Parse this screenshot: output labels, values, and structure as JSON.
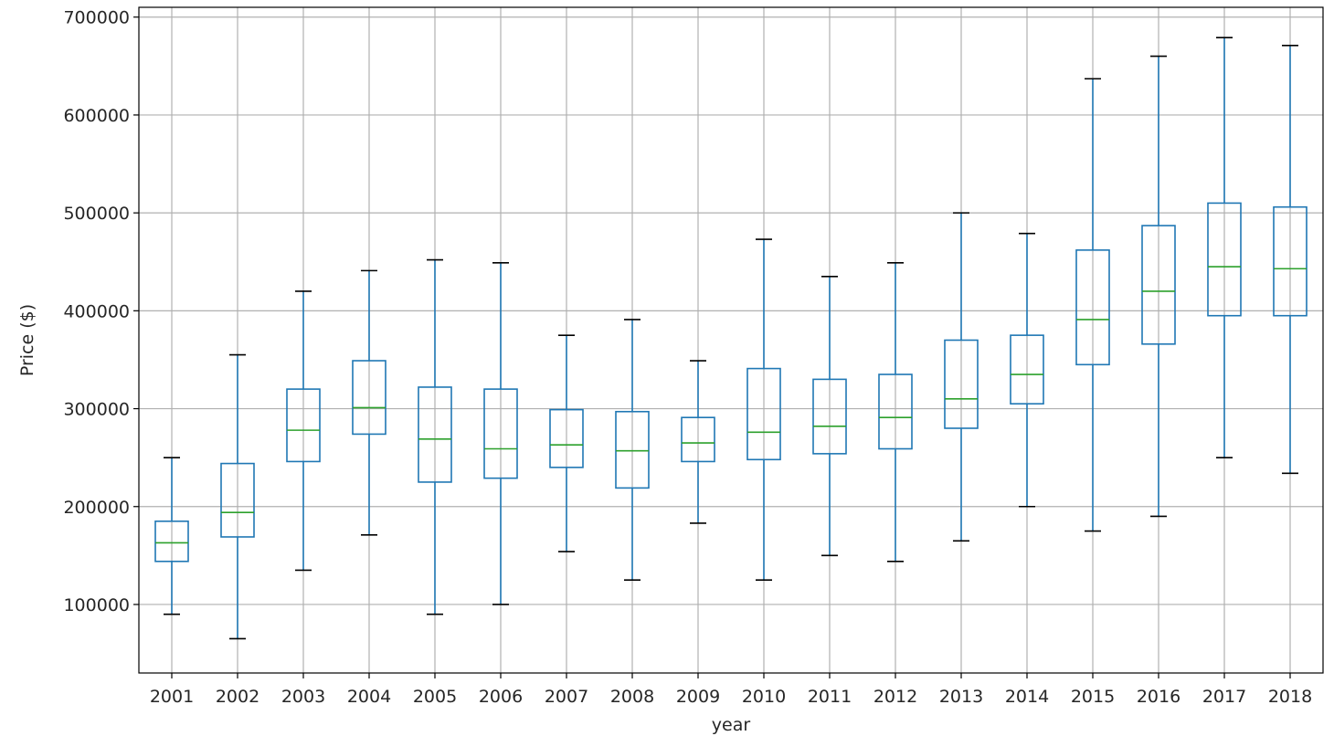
{
  "chart_data": {
    "type": "box",
    "title": "",
    "xlabel": "year",
    "ylabel": "Price ($)",
    "ylim": [
      30000,
      710000
    ],
    "yticks": [
      100000,
      200000,
      300000,
      400000,
      500000,
      600000,
      700000
    ],
    "ytick_labels": [
      "100000",
      "200000",
      "300000",
      "400000",
      "500000",
      "600000",
      "700000"
    ],
    "grid": true,
    "legend": "none",
    "colors": {
      "box": "#1f77b4",
      "median": "#2ca02c",
      "cap": "#000000",
      "grid": "#b0b0b0",
      "frame": "#000000"
    },
    "categories": [
      "2001",
      "2002",
      "2003",
      "2004",
      "2005",
      "2006",
      "2007",
      "2008",
      "2009",
      "2010",
      "2011",
      "2012",
      "2013",
      "2014",
      "2015",
      "2016",
      "2017",
      "2018"
    ],
    "boxes": [
      {
        "year": "2001",
        "whisker_low": 90000,
        "q1": 144000,
        "median": 163000,
        "q3": 185000,
        "whisker_high": 250000
      },
      {
        "year": "2002",
        "whisker_low": 65000,
        "q1": 169000,
        "median": 194000,
        "q3": 244000,
        "whisker_high": 355000
      },
      {
        "year": "2003",
        "whisker_low": 135000,
        "q1": 246000,
        "median": 278000,
        "q3": 320000,
        "whisker_high": 420000
      },
      {
        "year": "2004",
        "whisker_low": 171000,
        "q1": 274000,
        "median": 301000,
        "q3": 349000,
        "whisker_high": 441000
      },
      {
        "year": "2005",
        "whisker_low": 90000,
        "q1": 225000,
        "median": 269000,
        "q3": 322000,
        "whisker_high": 452000
      },
      {
        "year": "2006",
        "whisker_low": 100000,
        "q1": 229000,
        "median": 259000,
        "q3": 320000,
        "whisker_high": 449000
      },
      {
        "year": "2007",
        "whisker_low": 154000,
        "q1": 240000,
        "median": 263000,
        "q3": 299000,
        "whisker_high": 375000
      },
      {
        "year": "2008",
        "whisker_low": 125000,
        "q1": 219000,
        "median": 257000,
        "q3": 297000,
        "whisker_high": 391000
      },
      {
        "year": "2009",
        "whisker_low": 183000,
        "q1": 246000,
        "median": 265000,
        "q3": 291000,
        "whisker_high": 349000
      },
      {
        "year": "2010",
        "whisker_low": 125000,
        "q1": 248000,
        "median": 276000,
        "q3": 341000,
        "whisker_high": 473000
      },
      {
        "year": "2011",
        "whisker_low": 150000,
        "q1": 254000,
        "median": 282000,
        "q3": 330000,
        "whisker_high": 435000
      },
      {
        "year": "2012",
        "whisker_low": 144000,
        "q1": 259000,
        "median": 291000,
        "q3": 335000,
        "whisker_high": 449000
      },
      {
        "year": "2013",
        "whisker_low": 165000,
        "q1": 280000,
        "median": 310000,
        "q3": 370000,
        "whisker_high": 500000
      },
      {
        "year": "2014",
        "whisker_low": 200000,
        "q1": 305000,
        "median": 335000,
        "q3": 375000,
        "whisker_high": 479000
      },
      {
        "year": "2015",
        "whisker_low": 175000,
        "q1": 345000,
        "median": 391000,
        "q3": 462000,
        "whisker_high": 637000
      },
      {
        "year": "2016",
        "whisker_low": 190000,
        "q1": 366000,
        "median": 420000,
        "q3": 487000,
        "whisker_high": 660000
      },
      {
        "year": "2017",
        "whisker_low": 250000,
        "q1": 395000,
        "median": 445000,
        "q3": 510000,
        "whisker_high": 679000
      },
      {
        "year": "2018",
        "whisker_low": 234000,
        "q1": 395000,
        "median": 443000,
        "q3": 506000,
        "whisker_high": 671000
      }
    ]
  }
}
